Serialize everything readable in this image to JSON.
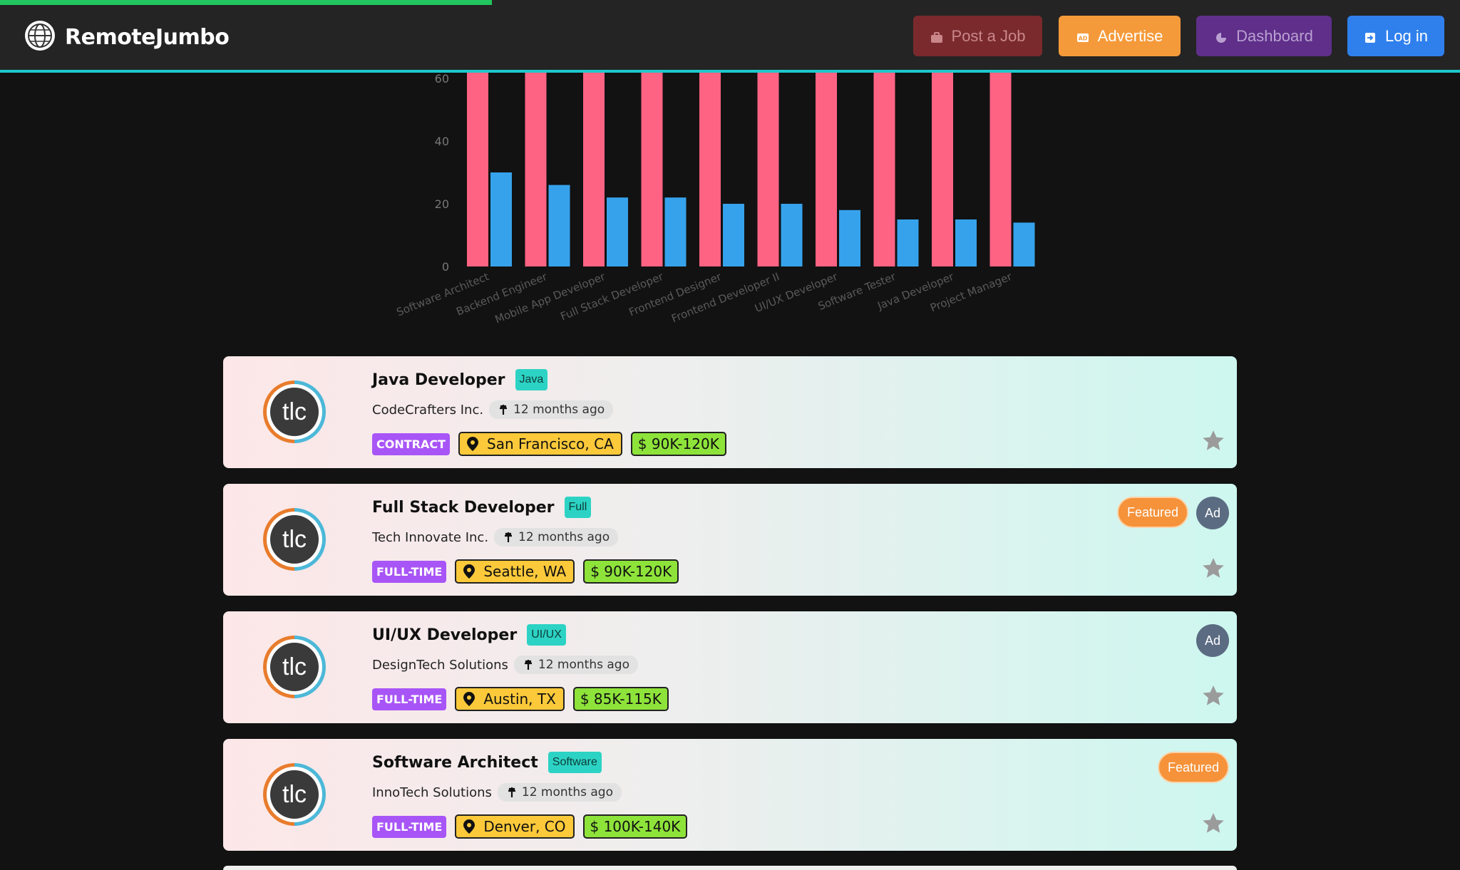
{
  "header": {
    "logo_text": "RemoteJumbo",
    "buttons": {
      "post": "Post a Job",
      "advertise": "Advertise",
      "dashboard": "Dashboard",
      "login": "Log in"
    },
    "progress_fraction": 0.337
  },
  "chart_data": {
    "type": "bar",
    "categories": [
      "Software Architect",
      "Backend Engineer",
      "Mobile App Developer",
      "Full Stack Developer",
      "Frontend Designer",
      "Frontend Developer II",
      "UI/UX Developer",
      "Software Tester",
      "Java Developer",
      "Project Manager"
    ],
    "series": [
      {
        "values": [
          62,
          62,
          62,
          62,
          62,
          62,
          62,
          62,
          62,
          62
        ],
        "color": "#ff6384"
      },
      {
        "values": [
          30,
          26,
          22,
          22,
          20,
          20,
          18,
          15,
          15,
          14
        ],
        "color": "#36a2eb"
      }
    ],
    "yticks": [
      "0",
      "20",
      "40",
      "60"
    ],
    "ylim": [
      0,
      60
    ],
    "grid": false
  },
  "jobs": [
    {
      "title": "Java Developer",
      "tag": "Java",
      "company": "CodeCrafters Inc.",
      "time": "12 months ago",
      "type": "CONTRACT",
      "location": "San Francisco, CA",
      "salary": "$ 90K-120K",
      "avatar": "tlc",
      "featured": "",
      "ad": ""
    },
    {
      "title": "Full Stack Developer",
      "tag": "Full",
      "company": "Tech Innovate Inc.",
      "time": "12 months ago",
      "type": "FULL-TIME",
      "location": "Seattle, WA",
      "salary": "$ 90K-120K",
      "avatar": "tlc",
      "featured": "Featured",
      "ad": "Ad"
    },
    {
      "title": "UI/UX Developer",
      "tag": "UI/UX",
      "company": "DesignTech Solutions",
      "time": "12 months ago",
      "type": "FULL-TIME",
      "location": "Austin, TX",
      "salary": "$ 85K-115K",
      "avatar": "tlc",
      "featured": "",
      "ad": "Ad"
    },
    {
      "title": "Software Architect",
      "tag": "Software",
      "company": "InnoTech Solutions",
      "time": "12 months ago",
      "type": "FULL-TIME",
      "location": "Denver, CO",
      "salary": "$ 100K-140K",
      "avatar": "tlc",
      "featured": "Featured",
      "ad": ""
    }
  ]
}
